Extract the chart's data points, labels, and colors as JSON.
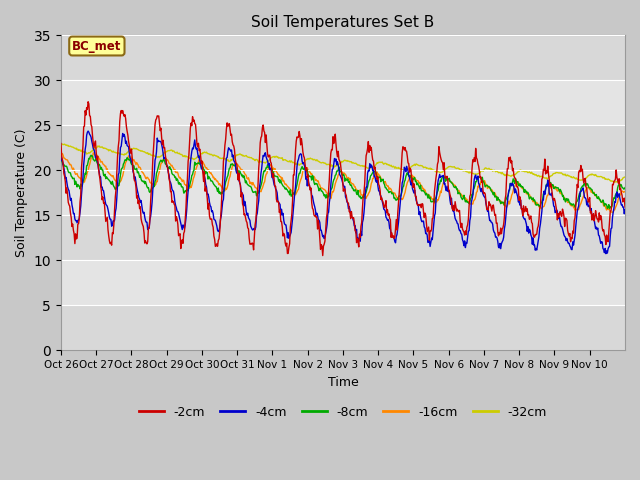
{
  "title": "Soil Temperatures Set B",
  "xlabel": "Time",
  "ylabel": "Soil Temperature (C)",
  "ylim": [
    0,
    35
  ],
  "yticks": [
    0,
    5,
    10,
    15,
    20,
    25,
    30,
    35
  ],
  "xlabels": [
    "Oct 26",
    "Oct 27",
    "Oct 28",
    "Oct 29",
    "Oct 30",
    "Oct 31",
    "Nov 1",
    "Nov 2",
    "Nov 3",
    "Nov 4",
    "Nov 5",
    "Nov 6",
    "Nov 7",
    "Nov 8",
    "Nov 9",
    "Nov 10"
  ],
  "colors": {
    "-2cm": "#cc0000",
    "-4cm": "#0000cc",
    "-8cm": "#00aa00",
    "-16cm": "#ff8800",
    "-32cm": "#cccc00"
  },
  "legend_colors": [
    "#cc0000",
    "#0000cc",
    "#00aa00",
    "#ff8800",
    "#cccc00"
  ],
  "legend_labels": [
    "-2cm",
    "-4cm",
    "-8cm",
    "-16cm",
    "-32cm"
  ],
  "annotation_text": "BC_met",
  "annotation_color": "#8B0000",
  "line_width": 1.0,
  "n_days": 16,
  "pts_per_day": 48,
  "band_colors": [
    "#e0e0e0",
    "#d0d0d0"
  ],
  "fig_bg": "#c8c8c8",
  "grid_color": "#ffffff"
}
